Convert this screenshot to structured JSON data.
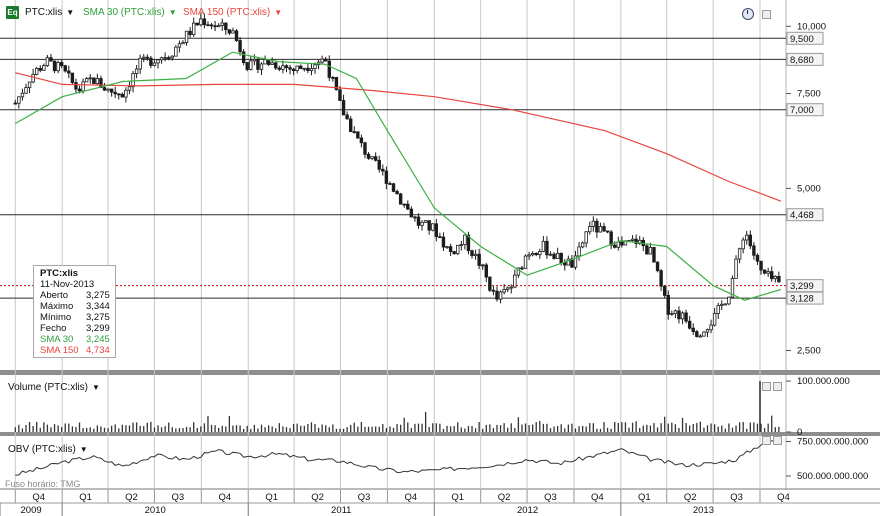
{
  "header": {
    "symbol": "PTC:xlis",
    "sma30_label": "SMA 30 (PTC:xlis)",
    "sma150_label": "SMA 150 (PTC:xlis)",
    "badge": "Eq"
  },
  "colors": {
    "up": "#1c1c1c",
    "down": "#1c1c1c",
    "sma30": "#3cb043",
    "sma150": "#e8453c",
    "grid": "#c8c8c8",
    "axis": "#b0b0b0",
    "level": "#2a2a2a",
    "last_price": "#cc0000",
    "volume": "#333333",
    "obv": "#333333",
    "badge": "#1c7a2e"
  },
  "info_box": {
    "title": "PTC:xlis",
    "date": "11-Nov-2013",
    "rows": [
      {
        "label": "Aberto",
        "value": "3,275"
      },
      {
        "label": "Máximo",
        "value": "3,344"
      },
      {
        "label": "Mínimo",
        "value": "3,275"
      },
      {
        "label": "Fecho",
        "value": "3,299"
      },
      {
        "label": "SMA 30",
        "value": "3,245"
      },
      {
        "label": "SMA 150",
        "value": "4,734"
      }
    ]
  },
  "panels": {
    "volume_title": "Volume (PTC:xlis)",
    "obv_title": "OBV (PTC:xlis)",
    "timezone_label": "Fuso horário: TMG"
  },
  "chart_data": [
    {
      "type": "candlestick",
      "scale": "log",
      "ylim": [
        2.3,
        11.0
      ],
      "y_ticks": [
        "10,000",
        "7,500",
        "5,000",
        "2,500"
      ],
      "y_tick_values": [
        10.0,
        7.5,
        5.0,
        2.5
      ],
      "levels": [
        {
          "value": 9.5,
          "label": "9,500"
        },
        {
          "value": 8.68,
          "label": "8,680"
        },
        {
          "value": 7.0,
          "label": "7,000"
        },
        {
          "value": 4.468,
          "label": "4,468"
        },
        {
          "value": 3.128,
          "label": "3,128"
        }
      ],
      "last_price": {
        "value": 3.299,
        "label": "3,299"
      },
      "close_series": {
        "x": [
          "2009-10-01",
          "2009-11-01",
          "2009-12-01",
          "2010-01-01",
          "2010-02-01",
          "2010-03-01",
          "2010-04-01",
          "2010-05-01",
          "2010-06-01",
          "2010-07-01",
          "2010-08-01",
          "2010-09-01",
          "2010-10-01",
          "2010-11-01",
          "2010-12-01",
          "2011-01-01",
          "2011-02-01",
          "2011-03-01",
          "2011-04-01",
          "2011-05-01",
          "2011-06-01",
          "2011-07-01",
          "2011-08-01",
          "2011-09-01",
          "2011-10-01",
          "2011-11-01",
          "2011-12-01",
          "2012-01-01",
          "2012-02-01",
          "2012-03-01",
          "2012-04-01",
          "2012-05-01",
          "2012-06-01",
          "2012-07-01",
          "2012-08-01",
          "2012-09-01",
          "2012-10-01",
          "2012-11-01",
          "2012-12-01",
          "2013-01-01",
          "2013-02-01",
          "2013-03-01",
          "2013-04-01",
          "2013-05-01",
          "2013-06-01",
          "2013-07-01",
          "2013-08-01",
          "2013-09-01",
          "2013-10-01",
          "2013-11-11"
        ],
        "y": [
          7.2,
          8.1,
          8.6,
          8.3,
          7.6,
          8.0,
          7.6,
          7.5,
          8.5,
          8.7,
          8.9,
          9.6,
          10.3,
          10.0,
          9.8,
          8.4,
          8.6,
          8.5,
          8.3,
          8.5,
          8.7,
          7.1,
          6.2,
          5.6,
          5.2,
          4.7,
          4.3,
          4.2,
          3.8,
          4.0,
          3.6,
          3.1,
          3.3,
          3.8,
          3.9,
          3.7,
          3.6,
          4.3,
          4.1,
          3.9,
          4.0,
          3.8,
          3.0,
          2.9,
          2.7,
          2.85,
          3.2,
          4.2,
          3.5,
          3.3
        ]
      },
      "sma30": {
        "x": [
          "2009-10-01",
          "2010-01-01",
          "2010-05-01",
          "2010-09-01",
          "2010-12-01",
          "2011-03-01",
          "2011-06-01",
          "2011-08-01",
          "2011-10-01",
          "2012-01-01",
          "2012-04-01",
          "2012-07-01",
          "2012-10-01",
          "2013-01-01",
          "2013-04-01",
          "2013-07-01",
          "2013-09-01",
          "2013-11-11"
        ],
        "y": [
          6.6,
          7.4,
          7.9,
          8.0,
          8.95,
          8.6,
          8.5,
          8.0,
          6.4,
          4.6,
          3.9,
          3.45,
          3.7,
          4.0,
          3.9,
          3.3,
          3.1,
          3.245
        ]
      },
      "sma150": {
        "x": [
          "2009-10-01",
          "2010-01-01",
          "2010-06-01",
          "2010-11-01",
          "2011-04-01",
          "2011-09-01",
          "2012-01-01",
          "2012-06-01",
          "2012-12-01",
          "2013-04-01",
          "2013-08-01",
          "2013-11-11"
        ],
        "y": [
          8.2,
          7.8,
          7.75,
          7.8,
          7.8,
          7.6,
          7.4,
          7.0,
          6.4,
          5.8,
          5.15,
          4.734
        ]
      }
    },
    {
      "type": "bar",
      "title": "Volume (PTC:xlis)",
      "ylim": [
        0,
        110000000
      ],
      "y_ticks": [
        "100.000.000",
        "0"
      ],
      "y_tick_values": [
        100000000,
        0
      ],
      "peak": {
        "x": "2013-10-01",
        "value": 100000000
      }
    },
    {
      "type": "line",
      "title": "OBV (PTC:xlis)",
      "ylim": [
        420000000000,
        790000000000
      ],
      "y_ticks": [
        "750.000.000.000",
        "500.000.000.000"
      ],
      "y_tick_values": [
        750000000000,
        500000000000
      ],
      "x": [
        "2009-10-01",
        "2009-11-15",
        "2010-01-01",
        "2010-03-01",
        "2010-05-01",
        "2010-07-01",
        "2010-09-01",
        "2010-11-01",
        "2011-01-01",
        "2011-03-01",
        "2011-05-01",
        "2011-07-01",
        "2011-09-01",
        "2011-11-01",
        "2012-01-01",
        "2012-03-01",
        "2012-05-01",
        "2012-07-01",
        "2012-09-01",
        "2012-11-01",
        "2013-01-01",
        "2013-03-01",
        "2013-05-01",
        "2013-07-01",
        "2013-08-15",
        "2013-09-15",
        "2013-10-15",
        "2013-11-11"
      ],
      "y": [
        510000000000,
        550000000000,
        600000000000,
        640000000000,
        570000000000,
        650000000000,
        620000000000,
        680000000000,
        640000000000,
        660000000000,
        620000000000,
        610000000000,
        560000000000,
        530000000000,
        540000000000,
        560000000000,
        580000000000,
        620000000000,
        590000000000,
        640000000000,
        690000000000,
        620000000000,
        580000000000,
        590000000000,
        620000000000,
        690000000000,
        760000000000,
        745000000000
      ]
    }
  ],
  "x_axis": {
    "quarters": [
      {
        "label": "Q4",
        "date": "2009-10-01"
      },
      {
        "label": "Q1",
        "date": "2010-01-01"
      },
      {
        "label": "Q2",
        "date": "2010-04-01"
      },
      {
        "label": "Q3",
        "date": "2010-07-01"
      },
      {
        "label": "Q4",
        "date": "2010-10-01"
      },
      {
        "label": "Q1",
        "date": "2011-01-01"
      },
      {
        "label": "Q2",
        "date": "2011-04-01"
      },
      {
        "label": "Q3",
        "date": "2011-07-01"
      },
      {
        "label": "Q4",
        "date": "2011-10-01"
      },
      {
        "label": "Q1",
        "date": "2012-01-01"
      },
      {
        "label": "Q2",
        "date": "2012-04-01"
      },
      {
        "label": "Q3",
        "date": "2012-07-01"
      },
      {
        "label": "Q4",
        "date": "2012-10-01"
      },
      {
        "label": "Q1",
        "date": "2013-01-01"
      },
      {
        "label": "Q2",
        "date": "2013-04-01"
      },
      {
        "label": "Q3",
        "date": "2013-07-01"
      },
      {
        "label": "Q4",
        "date": "2013-10-01"
      }
    ],
    "years": [
      {
        "label": "2009",
        "start": "2009-09-01",
        "end": "2010-01-01"
      },
      {
        "label": "2010",
        "start": "2010-01-01",
        "end": "2011-01-01"
      },
      {
        "label": "2011",
        "start": "2011-01-01",
        "end": "2012-01-01"
      },
      {
        "label": "2012",
        "start": "2012-01-01",
        "end": "2013-01-01"
      },
      {
        "label": "2013",
        "start": "2013-01-01",
        "end": "2013-11-21"
      }
    ]
  }
}
